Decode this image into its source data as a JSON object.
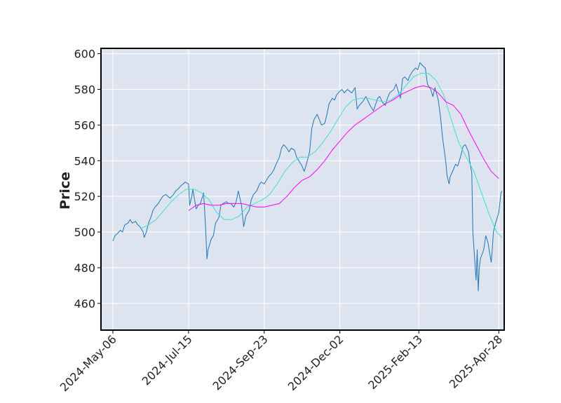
{
  "chart_data": {
    "type": "line",
    "title": "",
    "ylabel": "Price",
    "xlabel": "",
    "ylim": [
      445,
      603
    ],
    "xlim": [
      "2024-04-25",
      "2025-05-03"
    ],
    "yticks": [
      460,
      480,
      500,
      520,
      540,
      560,
      580,
      600
    ],
    "xticks": [
      {
        "date": "2024-05-06",
        "label": "2024-May-06"
      },
      {
        "date": "2024-07-15",
        "label": "2024-Jul-15"
      },
      {
        "date": "2024-09-23",
        "label": "2024-Sep-23"
      },
      {
        "date": "2024-12-02",
        "label": "2024-Dec-02"
      },
      {
        "date": "2025-02-13",
        "label": "2025-Feb-13"
      },
      {
        "date": "2025-04-28",
        "label": "2025-Apr-28"
      }
    ],
    "grid": true,
    "colors": {
      "background": "#dde3ef",
      "grid": "#ffffff",
      "price": "#1f77b4",
      "ma_short": "#40e0d0",
      "ma_long": "#ff00ff",
      "frame": "#000000"
    },
    "series": [
      {
        "key": "price",
        "points": [
          [
            "2024-05-06",
            495
          ],
          [
            "2024-05-08",
            498
          ],
          [
            "2024-05-10",
            499
          ],
          [
            "2024-05-13",
            501
          ],
          [
            "2024-05-15",
            500
          ],
          [
            "2024-05-17",
            504
          ],
          [
            "2024-05-20",
            505
          ],
          [
            "2024-05-22",
            507
          ],
          [
            "2024-05-24",
            505
          ],
          [
            "2024-05-27",
            506
          ],
          [
            "2024-05-29",
            504
          ],
          [
            "2024-05-31",
            503
          ],
          [
            "2024-06-03",
            500
          ],
          [
            "2024-06-04",
            497
          ],
          [
            "2024-06-06",
            500
          ],
          [
            "2024-06-08",
            505
          ],
          [
            "2024-06-10",
            508
          ],
          [
            "2024-06-12",
            512
          ],
          [
            "2024-06-14",
            514
          ],
          [
            "2024-06-17",
            516
          ],
          [
            "2024-06-19",
            518
          ],
          [
            "2024-06-21",
            520
          ],
          [
            "2024-06-24",
            521
          ],
          [
            "2024-06-26",
            520
          ],
          [
            "2024-06-28",
            519
          ],
          [
            "2024-07-01",
            521
          ],
          [
            "2024-07-03",
            523
          ],
          [
            "2024-07-05",
            524
          ],
          [
            "2024-07-08",
            526
          ],
          [
            "2024-07-10",
            527
          ],
          [
            "2024-07-12",
            528
          ],
          [
            "2024-07-15",
            527
          ],
          [
            "2024-07-16",
            515
          ],
          [
            "2024-07-18",
            520
          ],
          [
            "2024-07-19",
            524
          ],
          [
            "2024-07-22",
            513
          ],
          [
            "2024-07-24",
            515
          ],
          [
            "2024-07-26",
            516
          ],
          [
            "2024-07-29",
            522
          ],
          [
            "2024-07-31",
            500
          ],
          [
            "2024-08-01",
            485
          ],
          [
            "2024-08-02",
            490
          ],
          [
            "2024-08-05",
            496
          ],
          [
            "2024-08-07",
            498
          ],
          [
            "2024-08-09",
            505
          ],
          [
            "2024-08-12",
            508
          ],
          [
            "2024-08-14",
            515
          ],
          [
            "2024-08-16",
            516
          ],
          [
            "2024-08-19",
            517
          ],
          [
            "2024-08-21",
            516
          ],
          [
            "2024-08-23",
            516
          ],
          [
            "2024-08-26",
            514
          ],
          [
            "2024-08-28",
            517
          ],
          [
            "2024-08-30",
            523
          ],
          [
            "2024-09-02",
            515
          ],
          [
            "2024-09-04",
            503
          ],
          [
            "2024-09-06",
            509
          ],
          [
            "2024-09-09",
            512
          ],
          [
            "2024-09-11",
            518
          ],
          [
            "2024-09-13",
            521
          ],
          [
            "2024-09-16",
            523
          ],
          [
            "2024-09-18",
            526
          ],
          [
            "2024-09-20",
            528
          ],
          [
            "2024-09-23",
            527
          ],
          [
            "2024-09-25",
            529
          ],
          [
            "2024-09-27",
            531
          ],
          [
            "2024-09-30",
            533
          ],
          [
            "2024-10-02",
            535
          ],
          [
            "2024-10-04",
            538
          ],
          [
            "2024-10-07",
            542
          ],
          [
            "2024-10-09",
            547
          ],
          [
            "2024-10-11",
            549
          ],
          [
            "2024-10-14",
            547
          ],
          [
            "2024-10-16",
            545
          ],
          [
            "2024-10-18",
            547
          ],
          [
            "2024-10-21",
            546
          ],
          [
            "2024-10-23",
            542
          ],
          [
            "2024-10-25",
            540
          ],
          [
            "2024-10-28",
            537
          ],
          [
            "2024-10-30",
            534
          ],
          [
            "2024-11-01",
            538
          ],
          [
            "2024-11-04",
            545
          ],
          [
            "2024-11-06",
            558
          ],
          [
            "2024-11-08",
            563
          ],
          [
            "2024-11-11",
            566
          ],
          [
            "2024-11-13",
            563
          ],
          [
            "2024-11-15",
            560
          ],
          [
            "2024-11-18",
            561
          ],
          [
            "2024-11-20",
            566
          ],
          [
            "2024-11-22",
            572
          ],
          [
            "2024-11-25",
            575
          ],
          [
            "2024-11-27",
            574
          ],
          [
            "2024-11-29",
            577
          ],
          [
            "2024-12-02",
            579
          ],
          [
            "2024-12-04",
            580
          ],
          [
            "2024-12-06",
            578
          ],
          [
            "2024-12-09",
            580
          ],
          [
            "2024-12-11",
            579
          ],
          [
            "2024-12-13",
            578
          ],
          [
            "2024-12-16",
            581
          ],
          [
            "2024-12-18",
            569
          ],
          [
            "2024-12-20",
            571
          ],
          [
            "2024-12-23",
            573
          ],
          [
            "2024-12-26",
            576
          ],
          [
            "2024-12-30",
            571
          ],
          [
            "2025-01-02",
            568
          ],
          [
            "2025-01-06",
            575
          ],
          [
            "2025-01-08",
            576
          ],
          [
            "2025-01-10",
            573
          ],
          [
            "2025-01-13",
            571
          ],
          [
            "2025-01-15",
            575
          ],
          [
            "2025-01-17",
            578
          ],
          [
            "2025-01-21",
            580
          ],
          [
            "2025-01-23",
            583
          ],
          [
            "2025-01-27",
            575
          ],
          [
            "2025-01-29",
            586
          ],
          [
            "2025-01-31",
            587
          ],
          [
            "2025-02-03",
            585
          ],
          [
            "2025-02-05",
            588
          ],
          [
            "2025-02-07",
            590
          ],
          [
            "2025-02-10",
            592
          ],
          [
            "2025-02-12",
            591
          ],
          [
            "2025-02-14",
            595
          ],
          [
            "2025-02-17",
            593
          ],
          [
            "2025-02-19",
            592
          ],
          [
            "2025-02-21",
            583
          ],
          [
            "2025-02-24",
            580
          ],
          [
            "2025-02-26",
            576
          ],
          [
            "2025-02-28",
            581
          ],
          [
            "2025-03-03",
            574
          ],
          [
            "2025-03-05",
            565
          ],
          [
            "2025-03-07",
            553
          ],
          [
            "2025-03-10",
            539
          ],
          [
            "2025-03-11",
            532
          ],
          [
            "2025-03-13",
            527
          ],
          [
            "2025-03-14",
            531
          ],
          [
            "2025-03-17",
            535
          ],
          [
            "2025-03-19",
            538
          ],
          [
            "2025-03-21",
            537
          ],
          [
            "2025-03-24",
            543
          ],
          [
            "2025-03-26",
            548
          ],
          [
            "2025-03-28",
            549
          ],
          [
            "2025-03-31",
            545
          ],
          [
            "2025-04-01",
            540
          ],
          [
            "2025-04-03",
            533
          ],
          [
            "2025-04-04",
            500
          ],
          [
            "2025-04-07",
            473
          ],
          [
            "2025-04-08",
            490
          ],
          [
            "2025-04-09",
            467
          ],
          [
            "2025-04-10",
            480
          ],
          [
            "2025-04-11",
            485
          ],
          [
            "2025-04-14",
            490
          ],
          [
            "2025-04-16",
            498
          ],
          [
            "2025-04-18",
            494
          ],
          [
            "2025-04-21",
            483
          ],
          [
            "2025-04-22",
            490
          ],
          [
            "2025-04-23",
            500
          ],
          [
            "2025-04-25",
            505
          ],
          [
            "2025-04-28",
            511
          ],
          [
            "2025-04-30",
            522
          ],
          [
            "2025-05-01",
            523
          ]
        ]
      },
      {
        "key": "ma_short",
        "points": [
          [
            "2024-06-01",
            502
          ],
          [
            "2024-06-08",
            504
          ],
          [
            "2024-06-15",
            507
          ],
          [
            "2024-06-22",
            512
          ],
          [
            "2024-06-29",
            517
          ],
          [
            "2024-07-06",
            521
          ],
          [
            "2024-07-13",
            524
          ],
          [
            "2024-07-20",
            524
          ],
          [
            "2024-07-27",
            522
          ],
          [
            "2024-08-03",
            518
          ],
          [
            "2024-08-10",
            511
          ],
          [
            "2024-08-17",
            507
          ],
          [
            "2024-08-24",
            507
          ],
          [
            "2024-08-31",
            509
          ],
          [
            "2024-09-07",
            514
          ],
          [
            "2024-09-14",
            516
          ],
          [
            "2024-09-21",
            518
          ],
          [
            "2024-09-28",
            521
          ],
          [
            "2024-10-05",
            527
          ],
          [
            "2024-10-12",
            534
          ],
          [
            "2024-10-19",
            539
          ],
          [
            "2024-10-26",
            542
          ],
          [
            "2024-11-02",
            542
          ],
          [
            "2024-11-09",
            545
          ],
          [
            "2024-11-16",
            550
          ],
          [
            "2024-11-23",
            556
          ],
          [
            "2024-11-30",
            563
          ],
          [
            "2024-12-07",
            570
          ],
          [
            "2024-12-14",
            574
          ],
          [
            "2024-12-21",
            575
          ],
          [
            "2024-12-28",
            575
          ],
          [
            "2025-01-04",
            574
          ],
          [
            "2025-01-11",
            573
          ],
          [
            "2025-01-18",
            574
          ],
          [
            "2025-01-25",
            577
          ],
          [
            "2025-02-01",
            582
          ],
          [
            "2025-02-08",
            587
          ],
          [
            "2025-02-15",
            589
          ],
          [
            "2025-02-22",
            589
          ],
          [
            "2025-03-01",
            585
          ],
          [
            "2025-03-08",
            577
          ],
          [
            "2025-03-15",
            563
          ],
          [
            "2025-03-22",
            550
          ],
          [
            "2025-03-29",
            542
          ],
          [
            "2025-04-05",
            534
          ],
          [
            "2025-04-12",
            522
          ],
          [
            "2025-04-19",
            510
          ],
          [
            "2025-04-26",
            500
          ],
          [
            "2025-05-01",
            497
          ]
        ]
      },
      {
        "key": "ma_long",
        "points": [
          [
            "2024-07-15",
            512
          ],
          [
            "2024-07-22",
            515
          ],
          [
            "2024-07-29",
            516
          ],
          [
            "2024-08-05",
            515
          ],
          [
            "2024-08-12",
            515
          ],
          [
            "2024-08-19",
            516
          ],
          [
            "2024-08-26",
            516
          ],
          [
            "2024-09-02",
            516
          ],
          [
            "2024-09-09",
            515
          ],
          [
            "2024-09-16",
            514
          ],
          [
            "2024-09-23",
            514
          ],
          [
            "2024-09-30",
            515
          ],
          [
            "2024-10-07",
            516
          ],
          [
            "2024-10-14",
            520
          ],
          [
            "2024-10-21",
            525
          ],
          [
            "2024-10-28",
            529
          ],
          [
            "2024-11-04",
            531
          ],
          [
            "2024-11-11",
            535
          ],
          [
            "2024-11-18",
            540
          ],
          [
            "2024-11-25",
            546
          ],
          [
            "2024-12-02",
            551
          ],
          [
            "2024-12-09",
            556
          ],
          [
            "2024-12-16",
            560
          ],
          [
            "2024-12-23",
            563
          ],
          [
            "2024-12-30",
            566
          ],
          [
            "2025-01-06",
            569
          ],
          [
            "2025-01-13",
            572
          ],
          [
            "2025-01-20",
            574
          ],
          [
            "2025-01-27",
            577
          ],
          [
            "2025-02-03",
            579
          ],
          [
            "2025-02-10",
            581
          ],
          [
            "2025-02-17",
            582
          ],
          [
            "2025-02-24",
            581
          ],
          [
            "2025-03-03",
            578
          ],
          [
            "2025-03-10",
            573
          ],
          [
            "2025-03-17",
            571
          ],
          [
            "2025-03-24",
            566
          ],
          [
            "2025-03-31",
            557
          ],
          [
            "2025-04-07",
            549
          ],
          [
            "2025-04-14",
            541
          ],
          [
            "2025-04-21",
            534
          ],
          [
            "2025-04-28",
            530
          ]
        ]
      }
    ]
  }
}
